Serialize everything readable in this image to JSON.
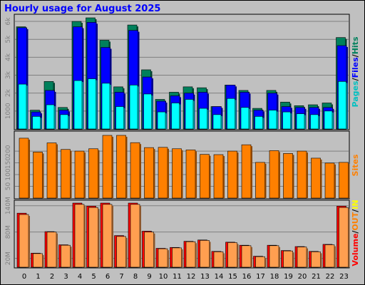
{
  "title": "Hourly usage for August 2025",
  "colors": {
    "hits": "#00805c",
    "files": "#0000ff",
    "pages": "#00ffff",
    "sites": "#ff8000",
    "kbin": "#ff8000",
    "kbout": "#ffff00",
    "volume": "#ff0000",
    "volume_fill": "#ff9f50"
  },
  "side_labels": {
    "top": [
      {
        "text": "Pages",
        "color": "#00c0c0"
      },
      {
        "text": "/",
        "color": "#000000"
      },
      {
        "text": "Files",
        "color": "#0000ff"
      },
      {
        "text": "/",
        "color": "#000000"
      },
      {
        "text": "Hits",
        "color": "#00805c"
      }
    ],
    "mid": [
      {
        "text": "Sites",
        "color": "#ff8000"
      }
    ],
    "bottom": [
      {
        "text": "Volume",
        "color": "#ff0000"
      },
      {
        "text": "/",
        "color": "#000000"
      },
      {
        "text": "OUT",
        "color": "#ff8000"
      },
      {
        "text": "/",
        "color": "#000000"
      },
      {
        "text": "IN",
        "color": "#ffff00"
      }
    ]
  },
  "chart_data": [
    {
      "type": "bar",
      "name": "pages_files_hits",
      "categories": [
        "0",
        "1",
        "2",
        "3",
        "4",
        "5",
        "6",
        "7",
        "8",
        "9",
        "10",
        "11",
        "12",
        "13",
        "14",
        "15",
        "16",
        "17",
        "18",
        "19",
        "20",
        "21",
        "22",
        "23"
      ],
      "ylim": [
        0,
        6200
      ],
      "yticks": [
        "1000",
        "2k",
        "3k",
        "4k",
        "5k",
        "6k"
      ],
      "series": [
        {
          "name": "Hits",
          "values": [
            5700,
            1050,
            2650,
            1200,
            6000,
            6200,
            4950,
            2350,
            5800,
            3300,
            1650,
            2050,
            2350,
            2300,
            1250,
            2450,
            2150,
            1150,
            2150,
            1500,
            1300,
            1350,
            1450,
            5100
          ]
        },
        {
          "name": "Files",
          "values": [
            5650,
            950,
            2150,
            1050,
            5700,
            5950,
            4550,
            2050,
            5500,
            2900,
            1550,
            1850,
            2000,
            2050,
            1250,
            2450,
            2050,
            1050,
            2000,
            1250,
            1200,
            1200,
            1200,
            4650
          ]
        },
        {
          "name": "Pages",
          "values": [
            2500,
            700,
            1350,
            800,
            2700,
            2800,
            2550,
            1250,
            2450,
            1950,
            950,
            1450,
            1650,
            1150,
            800,
            1700,
            1200,
            700,
            1050,
            950,
            850,
            800,
            1000,
            2650
          ]
        }
      ]
    },
    {
      "type": "bar",
      "name": "sites",
      "categories": [
        "0",
        "1",
        "2",
        "3",
        "4",
        "5",
        "6",
        "7",
        "8",
        "9",
        "10",
        "11",
        "12",
        "13",
        "14",
        "15",
        "16",
        "17",
        "18",
        "19",
        "20",
        "21",
        "22",
        "23"
      ],
      "ylim": [
        0,
        273
      ],
      "yticks": [
        "50",
        "100",
        "150",
        "200"
      ],
      "series": [
        {
          "name": "Sites",
          "values": [
            255,
            196,
            235,
            207,
            200,
            210,
            267,
            267,
            236,
            215,
            216,
            210,
            205,
            186,
            185,
            200,
            227,
            152,
            202,
            190,
            200,
            170,
            149,
            152
          ]
        }
      ]
    },
    {
      "type": "bar",
      "name": "volume",
      "categories": [
        "0",
        "1",
        "2",
        "3",
        "4",
        "5",
        "6",
        "7",
        "8",
        "9",
        "10",
        "11",
        "12",
        "13",
        "14",
        "15",
        "16",
        "17",
        "18",
        "19",
        "20",
        "21",
        "22",
        "23"
      ],
      "ylim": [
        0,
        146
      ],
      "yticks": [
        "20M",
        "80M",
        "140M"
      ],
      "series": [
        {
          "name": "Volume",
          "values": [
            123,
            32,
            81,
            51,
            146,
            139,
            146,
            72,
            146,
            82,
            43,
            45,
            59,
            62,
            36,
            57,
            50,
            25,
            50,
            38,
            47,
            36,
            52,
            139
          ]
        },
        {
          "name": "OUT",
          "values": [
            120,
            31,
            80,
            50,
            143,
            136,
            143,
            70,
            143,
            80,
            42,
            44,
            58,
            61,
            35,
            56,
            49,
            24,
            49,
            37,
            46,
            35,
            51,
            136
          ]
        }
      ]
    }
  ]
}
